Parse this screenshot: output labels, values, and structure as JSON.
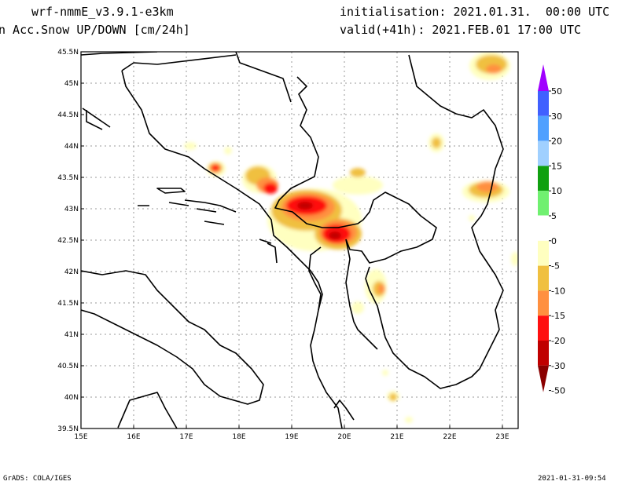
{
  "header": {
    "model": "wrf-nmmE_v3.9.1-e3km",
    "variable": "n Acc.Snow UP/DOWN [cm/24h]",
    "init": "initialisation: 2021.01.31.  00:00 UTC",
    "valid": "valid(+41h): 2021.FEB.01 17:00 UTC"
  },
  "footer": {
    "credit": "GrADS: COLA/IGES",
    "timestamp": "2021-01-31-09:54"
  },
  "map": {
    "lon_labels": [
      "15E",
      "16E",
      "17E",
      "18E",
      "19E",
      "20E",
      "21E",
      "22E",
      "23E"
    ],
    "lat_labels": [
      "45.5N",
      "45N",
      "44.5N",
      "44N",
      "43.5N",
      "43N",
      "42.5N",
      "42N",
      "41.5N",
      "41N",
      "40.5N",
      "40N",
      "39.5N"
    ]
  },
  "colorbar": {
    "labels": [
      "50",
      "30",
      "20",
      "15",
      "10",
      "5",
      "0",
      "-5",
      "-10",
      "-15",
      "-20",
      "-30",
      "-50"
    ],
    "colors": [
      "#a000ff",
      "#4060ff",
      "#50a0ff",
      "#a0d0ff",
      "#10a010",
      "#70f070",
      "#ffffff",
      "#ffffc0",
      "#f0c040",
      "#ff9040",
      "#ff1010",
      "#c00000",
      "#8a0000"
    ]
  }
}
